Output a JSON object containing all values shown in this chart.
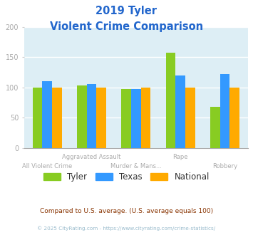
{
  "title_line1": "2019 Tyler",
  "title_line2": "Violent Crime Comparison",
  "series": {
    "Tyler": [
      100,
      103,
      98,
      158,
      68
    ],
    "Texas": [
      110,
      106,
      98,
      120,
      122
    ],
    "National": [
      100,
      100,
      100,
      100,
      100
    ]
  },
  "colors": {
    "Tyler": "#88cc22",
    "Texas": "#3399ff",
    "National": "#ffaa00"
  },
  "ylim": [
    0,
    200
  ],
  "yticks": [
    0,
    50,
    100,
    150,
    200
  ],
  "bar_width": 0.22,
  "title_color": "#2266cc",
  "axis_bg_color": "#ddeef5",
  "fig_bg_color": "#ffffff",
  "grid_color": "#ffffff",
  "tick_label_color": "#aaaaaa",
  "legend_labels": [
    "Tyler",
    "Texas",
    "National"
  ],
  "cat_top": [
    "",
    "Aggravated Assault",
    "",
    "Rape",
    ""
  ],
  "cat_bot": [
    "All Violent Crime",
    "",
    "Murder & Mans...",
    "",
    "Robbery"
  ],
  "footnote1": "Compared to U.S. average. (U.S. average equals 100)",
  "footnote2": "© 2025 CityRating.com - https://www.cityrating.com/crime-statistics/",
  "footnote1_color": "#883300",
  "footnote2_color": "#99bbcc"
}
